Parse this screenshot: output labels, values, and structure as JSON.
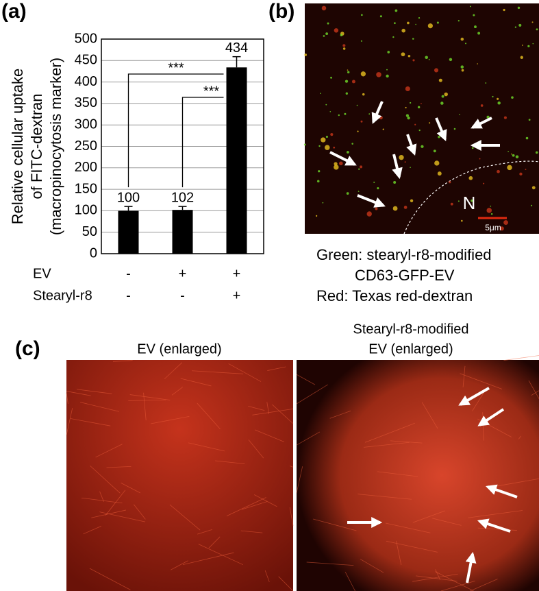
{
  "panel_labels": [
    "(a)",
    "(b)",
    "(c)"
  ],
  "chart_data": {
    "type": "bar",
    "ylabel": [
      "Relative cellular uptake",
      "of FITC-dextran",
      "(macropinocytosis marker)"
    ],
    "values": [
      100,
      102,
      434
    ],
    "errors": [
      10,
      8,
      25
    ],
    "color": "#000000",
    "ylim": [
      0,
      500
    ],
    "yticks": [
      0,
      50,
      100,
      150,
      200,
      250,
      300,
      350,
      400,
      450,
      500
    ],
    "grid": true,
    "conditions": [
      {
        "label": "EV",
        "values": [
          "-",
          "+",
          "+"
        ]
      },
      {
        "label": "Stearyl-r8",
        "values": [
          "-",
          "-",
          "+"
        ]
      }
    ],
    "annotations": [
      "***",
      "***"
    ]
  },
  "panel_b": {
    "nucleus_label": "N",
    "scale_bar": "5μm",
    "legend": [
      "Green: stearyl-r8-modified",
      "CD63-GFP-EV",
      "Red: Texas red-dextran"
    ]
  },
  "panel_c": {
    "left_title": "EV (enlarged)",
    "right_title": [
      "Stearyl-r8-modified",
      "EV (enlarged)"
    ]
  }
}
